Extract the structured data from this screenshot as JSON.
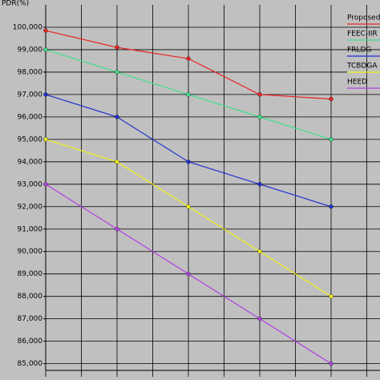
{
  "chart_data": {
    "type": "line",
    "y_label": "PDR(%)",
    "categories": [
      null,
      null,
      null,
      null,
      null
    ],
    "series": [
      {
        "name": "Proposed",
        "color": "#e8231f",
        "values": [
          99.85,
          99.1,
          98.6,
          97.0,
          96.8
        ]
      },
      {
        "name": "FEEC-IIR",
        "color": "#3ee08a",
        "values": [
          99,
          98,
          97,
          96,
          95
        ]
      },
      {
        "name": "FRLDG",
        "color": "#1f2fd0",
        "values": [
          97,
          96,
          94,
          93,
          92
        ]
      },
      {
        "name": "TCBDGA",
        "color": "#f0f018",
        "values": [
          95,
          94,
          92,
          90,
          88
        ]
      },
      {
        "name": "HEED",
        "color": "#b040e0",
        "values": [
          93,
          91,
          89,
          87,
          85
        ]
      }
    ],
    "ylim": [
      84.7,
      101
    ],
    "yticks": [
      {
        "value": 85,
        "label": "85,000"
      },
      {
        "value": 86,
        "label": "86,000"
      },
      {
        "value": 87,
        "label": "87,000"
      },
      {
        "value": 88,
        "label": "88,000"
      },
      {
        "value": 89,
        "label": "89,000"
      },
      {
        "value": 90,
        "label": "90,000"
      },
      {
        "value": 91,
        "label": "91,000"
      },
      {
        "value": 92,
        "label": "92,000"
      },
      {
        "value": 93,
        "label": "93,000"
      },
      {
        "value": 94,
        "label": "94,000"
      },
      {
        "value": 95,
        "label": "95,000"
      },
      {
        "value": 96,
        "label": "96,000"
      },
      {
        "value": 97,
        "label": "97,000"
      },
      {
        "value": 98,
        "label": "98,000"
      },
      {
        "value": 99,
        "label": "99,000"
      },
      {
        "value": 100,
        "label": "100,000"
      }
    ],
    "grid": true
  }
}
